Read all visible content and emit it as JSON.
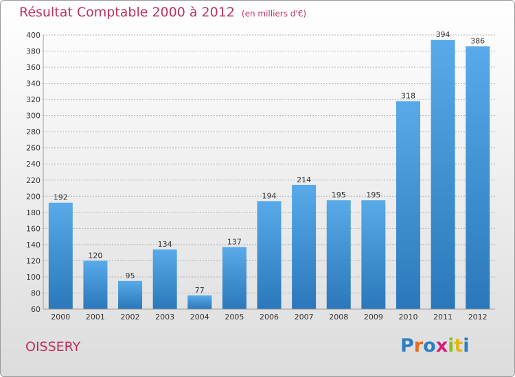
{
  "header": {
    "title": "Résultat Comptable 2000 à 2012",
    "subtitle": "(en milliers d'€)"
  },
  "footer": {
    "commune": "OISSERY",
    "logo": "Proxiti",
    "logo_colors": [
      "#2c7fc1",
      "#e86a1f",
      "#2c7fc1",
      "#d3207e",
      "#8cbf26",
      "#e3b51a",
      "#2c7fc1"
    ]
  },
  "colors": {
    "bar": "#4a9de0",
    "bar_dark": "#2a78bb",
    "title": "#c0305a",
    "grid": "#b0b0b0"
  },
  "chart_data": {
    "type": "bar",
    "title": "Résultat Comptable 2000 à 2012",
    "subtitle": "(en milliers d'€)",
    "categories": [
      "2000",
      "2001",
      "2002",
      "2003",
      "2004",
      "2005",
      "2006",
      "2007",
      "2008",
      "2009",
      "2010",
      "2011",
      "2012"
    ],
    "values": [
      192,
      120,
      95,
      134,
      77,
      137,
      194,
      214,
      195,
      195,
      318,
      394,
      386
    ],
    "ylim": [
      60,
      400
    ],
    "yticks": [
      60,
      80,
      100,
      120,
      140,
      160,
      180,
      200,
      220,
      240,
      260,
      280,
      300,
      320,
      340,
      360,
      380,
      400
    ],
    "grid": "horizontal dashed",
    "xlabel": "",
    "ylabel": ""
  }
}
